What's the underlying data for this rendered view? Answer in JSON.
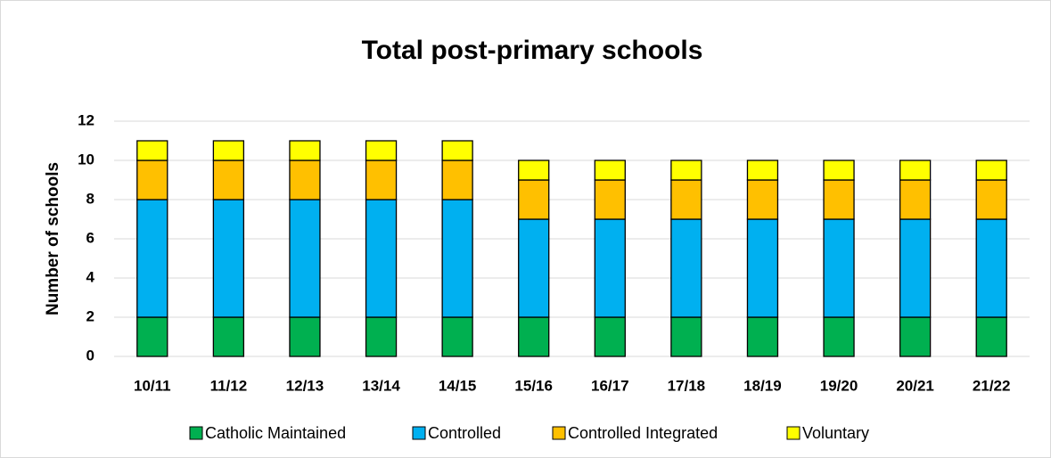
{
  "chart_data": {
    "type": "bar",
    "stacked": true,
    "title": "Total post-primary schools",
    "y_label": "Number of schools",
    "categories": [
      "10/11",
      "11/12",
      "12/13",
      "13/14",
      "14/15",
      "15/16",
      "16/17",
      "17/18",
      "18/19",
      "19/20",
      "20/21",
      "21/22"
    ],
    "series": [
      {
        "name": "Catholic Maintained",
        "color": "#00b050",
        "values": [
          2,
          2,
          2,
          2,
          2,
          2,
          2,
          2,
          2,
          2,
          2,
          2
        ]
      },
      {
        "name": "Controlled",
        "color": "#00b0f0",
        "values": [
          6,
          6,
          6,
          6,
          6,
          5,
          5,
          5,
          5,
          5,
          5,
          5
        ]
      },
      {
        "name": "Controlled Integrated",
        "color": "#ffc000",
        "values": [
          2,
          2,
          2,
          2,
          2,
          2,
          2,
          2,
          2,
          2,
          2,
          2
        ]
      },
      {
        "name": "Voluntary",
        "color": "#ffff00",
        "values": [
          1,
          1,
          1,
          1,
          1,
          1,
          1,
          1,
          1,
          1,
          1,
          1
        ]
      }
    ],
    "ylim": [
      0,
      12
    ],
    "yticks": [
      0,
      2,
      4,
      6,
      8,
      10,
      12
    ],
    "grid": true,
    "legend": "bottom"
  }
}
